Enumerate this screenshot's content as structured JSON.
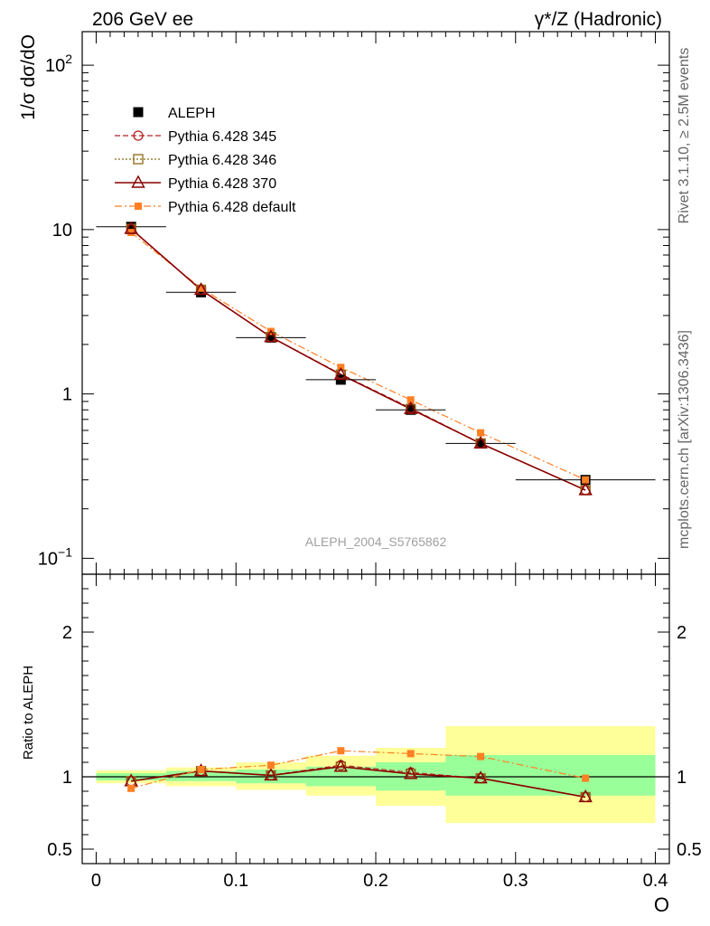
{
  "header": {
    "left_title": "206 GeV ee",
    "right_title": "γ*/Z (Hadronic)"
  },
  "side": {
    "rivet_label": "Rivet 3.1.10, ≥ 2.5M events",
    "mcplots_label": "mcplots.cern.ch [arXiv:1306.3436]"
  },
  "analysis_label": "ALEPH_2004_S5765862",
  "colors": {
    "data": "#000000",
    "p345": "#b22222",
    "p346": "#8b6914",
    "p370": "#8b0000",
    "pdefault": "#ff7f24",
    "band_inner": "#99ff99",
    "band_outer": "#ffff99"
  },
  "chart_data": [
    {
      "type": "scatter",
      "panel": "main",
      "ylabel": "1/σ  dσ/dO",
      "yscale": "log",
      "xlim": [
        -0.01,
        0.41
      ],
      "ylim": [
        0.08,
        160
      ],
      "y_tick_labels": [
        {
          "value": 100,
          "base": "10",
          "exp": "2"
        },
        {
          "value": 10,
          "base": "10",
          "exp": ""
        },
        {
          "value": 1,
          "base": "1",
          "exp": ""
        },
        {
          "value": 0.1,
          "base": "10",
          "exp": "−1"
        }
      ],
      "x": [
        0.025,
        0.075,
        0.125,
        0.175,
        0.225,
        0.275,
        0.35
      ],
      "xerr": [
        0.025,
        0.025,
        0.025,
        0.025,
        0.025,
        0.025,
        0.05
      ],
      "series": [
        {
          "name": "ALEPH",
          "key": "data",
          "marker": "square-filled",
          "dash": "none",
          "values": [
            10.4,
            4.15,
            2.2,
            1.22,
            0.8,
            0.5,
            0.3
          ]
        },
        {
          "name": "Pythia 6.428 345",
          "key": "p345",
          "marker": "circle-open",
          "dash": "6,3",
          "values": [
            10.1,
            4.3,
            2.22,
            1.32,
            0.82,
            0.5,
            0.26
          ]
        },
        {
          "name": "Pythia 6.428 346",
          "key": "p346",
          "marker": "square-open",
          "dash": "2,2",
          "values": [
            10.1,
            4.3,
            2.22,
            1.31,
            0.81,
            0.5,
            0.26
          ]
        },
        {
          "name": "Pythia 6.428 370",
          "key": "p370",
          "marker": "triangle-open",
          "dash": "none",
          "values": [
            10.1,
            4.3,
            2.22,
            1.31,
            0.81,
            0.5,
            0.26
          ]
        },
        {
          "name": "Pythia 6.428 default",
          "key": "pdefault",
          "marker": "square-filled-small",
          "dash": "8,3,2,3",
          "values": [
            9.6,
            4.4,
            2.4,
            1.45,
            0.92,
            0.58,
            0.3
          ]
        }
      ]
    },
    {
      "type": "scatter",
      "panel": "ratio",
      "ylabel": "Ratio to ALEPH",
      "xlabel": "O",
      "xlim": [
        -0.01,
        0.41
      ],
      "ylim": [
        0.4,
        2.4
      ],
      "y_tick_labels": [
        "2",
        "1",
        "0.5"
      ],
      "y_tick_values": [
        2,
        1,
        0.5
      ],
      "x_tick_labels": [
        "0",
        "0.1",
        "0.2",
        "0.3",
        "0.4"
      ],
      "x_tick_values": [
        0,
        0.1,
        0.2,
        0.3,
        0.4
      ],
      "bands": [
        {
          "x0": 0.0,
          "x1": 0.05,
          "inner": [
            0.975,
            1.025
          ],
          "outer": [
            0.955,
            1.045
          ]
        },
        {
          "x0": 0.05,
          "x1": 0.1,
          "inner": [
            0.97,
            1.04
          ],
          "outer": [
            0.935,
            1.065
          ]
        },
        {
          "x0": 0.1,
          "x1": 0.15,
          "inner": [
            0.955,
            1.05
          ],
          "outer": [
            0.91,
            1.1
          ]
        },
        {
          "x0": 0.15,
          "x1": 0.2,
          "inner": [
            0.935,
            1.07
          ],
          "outer": [
            0.87,
            1.145
          ]
        },
        {
          "x0": 0.2,
          "x1": 0.25,
          "inner": [
            0.905,
            1.1
          ],
          "outer": [
            0.8,
            1.2
          ]
        },
        {
          "x0": 0.25,
          "x1": 0.4,
          "inner": [
            0.87,
            1.15
          ],
          "outer": [
            0.68,
            1.35
          ]
        }
      ],
      "series": [
        {
          "name": "Pythia 6.428 345",
          "key": "p345",
          "values": [
            0.97,
            1.04,
            1.01,
            1.08,
            1.03,
            0.99,
            0.86
          ]
        },
        {
          "name": "Pythia 6.428 346",
          "key": "p346",
          "values": [
            0.97,
            1.04,
            1.01,
            1.07,
            1.02,
            0.99,
            0.86
          ]
        },
        {
          "name": "Pythia 6.428 370",
          "key": "p370",
          "values": [
            0.97,
            1.04,
            1.01,
            1.07,
            1.02,
            0.99,
            0.86
          ]
        },
        {
          "name": "Pythia 6.428 default",
          "key": "pdefault",
          "values": [
            0.92,
            1.05,
            1.08,
            1.18,
            1.16,
            1.14,
            0.99
          ]
        }
      ]
    }
  ]
}
